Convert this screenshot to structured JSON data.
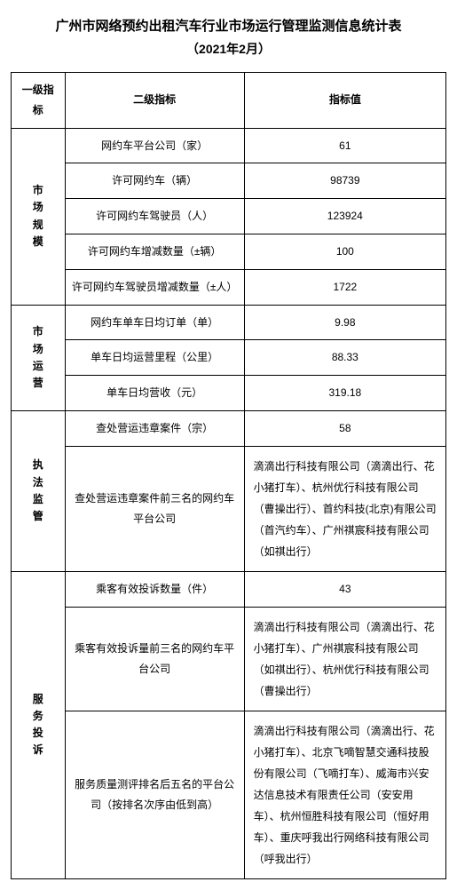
{
  "title": "广州市网络预约出租汽车行业市场运行管理监测信息统计表",
  "subtitle": "（2021年2月）",
  "headers": {
    "col1": "一级指标",
    "col2": "二级指标",
    "col3": "指标值"
  },
  "sections": [
    {
      "name": "市场规模",
      "rows": [
        {
          "label": "网约车平台公司（家）",
          "value": "61"
        },
        {
          "label": "许可网约车（辆）",
          "value": "98739"
        },
        {
          "label": "许可网约车驾驶员（人）",
          "value": "123924"
        },
        {
          "label": "许可网约车增减数量（±辆）",
          "value": "100"
        },
        {
          "label": "许可网约车驾驶员增减数量（±人）",
          "value": "1722"
        }
      ]
    },
    {
      "name": "市场运营",
      "rows": [
        {
          "label": "网约车单车日均订单（单）",
          "value": "9.98"
        },
        {
          "label": "单车日均运营里程（公里）",
          "value": "88.33"
        },
        {
          "label": "单车日均营收（元）",
          "value": "319.18"
        }
      ]
    },
    {
      "name": "执法监管",
      "rows": [
        {
          "label": "查处营运违章案件（宗）",
          "value": "58"
        },
        {
          "label": "查处营运违章案件前三名的网约车平台公司",
          "value": "滴滴出行科技有限公司（滴滴出行、花小猪打车）、杭州优行科技有限公司（曹操出行）、首约科技(北京)有限公司（首汽约车）、广州祺宸科技有限公司（如祺出行）",
          "long": true
        }
      ]
    },
    {
      "name": "服务投诉",
      "rows": [
        {
          "label": "乘客有效投诉数量（件）",
          "value": "43"
        },
        {
          "label": "乘客有效投诉量前三名的网约车平台公司",
          "value": "滴滴出行科技有限公司（滴滴出行、花小猪打车）、广州祺宸科技有限公司（如祺出行）、杭州优行科技有限公司（曹操出行）",
          "long": true
        },
        {
          "label": "服务质量测评排名后五名的平台公司（按排名次序由低到高）",
          "value": "滴滴出行科技有限公司（滴滴出行、花小猪打车）、北京飞嘀智慧交通科技股份有限公司（飞嘀打车）、威海市兴安达信息技术有限责任公司（安安用车）、杭州恒胜科技有限公司（恒好用车）、重庆呼我出行网络科技有限公司（呼我出行）",
          "long": true
        }
      ]
    }
  ]
}
